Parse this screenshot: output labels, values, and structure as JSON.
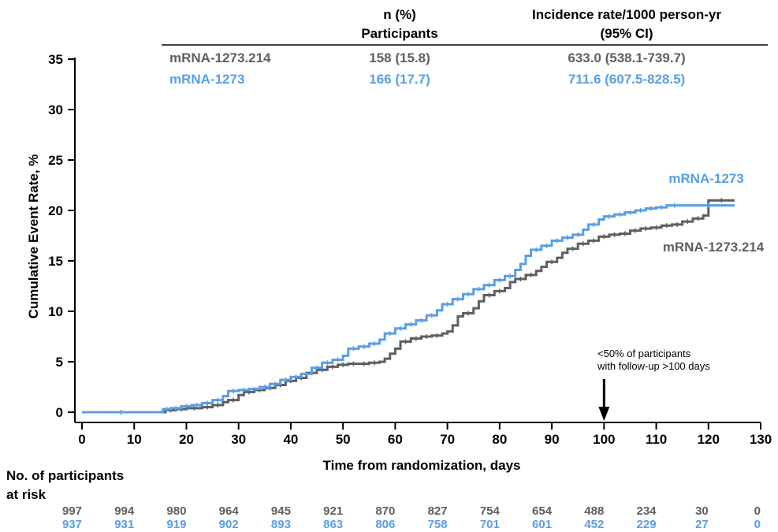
{
  "chart_data": {
    "type": "line",
    "step": true,
    "xlabel": "Time from randomization, days",
    "ylabel": "Cumulative Event Rate, %",
    "xlim": [
      0,
      130
    ],
    "ylim": [
      0,
      35
    ],
    "xticks": [
      0,
      10,
      20,
      30,
      40,
      50,
      60,
      70,
      80,
      90,
      100,
      110,
      120,
      130
    ],
    "yticks": [
      0,
      5,
      10,
      15,
      20,
      25,
      30,
      35
    ],
    "grid": false,
    "summary_table": {
      "headers": {
        "n_line1": "n (%)",
        "n_line2": "Participants",
        "ir_line1": "Incidence rate/1000 person-yr",
        "ir_line2": "(95% CI)"
      },
      "rows": [
        {
          "label": "mRNA-1273.214",
          "n": "158 (15.8)",
          "ir": "633.0 (538.1-739.7)",
          "color": "#5f5f5f"
        },
        {
          "label": "mRNA-1273",
          "n": "166 (17.7)",
          "ir": "711.6 (607.5-828.5)",
          "color": "#5a9ee6"
        }
      ]
    },
    "series": [
      {
        "name": "mRNA-1273.214",
        "color": "#5f5f5f",
        "points": [
          [
            0,
            0
          ],
          [
            15,
            0
          ],
          [
            16,
            0.2
          ],
          [
            18,
            0.3
          ],
          [
            20,
            0.4
          ],
          [
            23,
            0.5
          ],
          [
            25,
            0.7
          ],
          [
            27,
            1.0
          ],
          [
            28,
            1.2
          ],
          [
            30,
            1.7
          ],
          [
            31,
            2.0
          ],
          [
            33,
            2.2
          ],
          [
            35,
            2.4
          ],
          [
            37,
            2.7
          ],
          [
            39,
            3.1
          ],
          [
            41,
            3.4
          ],
          [
            43,
            3.9
          ],
          [
            45,
            4.2
          ],
          [
            47,
            4.5
          ],
          [
            49,
            4.7
          ],
          [
            51,
            4.8
          ],
          [
            53,
            4.8
          ],
          [
            55,
            4.9
          ],
          [
            57,
            5.0
          ],
          [
            58,
            5.3
          ],
          [
            59,
            5.8
          ],
          [
            60,
            6.3
          ],
          [
            61,
            7.0
          ],
          [
            63,
            7.3
          ],
          [
            65,
            7.5
          ],
          [
            67,
            7.6
          ],
          [
            69,
            7.8
          ],
          [
            70,
            8.0
          ],
          [
            71,
            8.6
          ],
          [
            72,
            9.5
          ],
          [
            73,
            9.8
          ],
          [
            75,
            10.3
          ],
          [
            76,
            11.0
          ],
          [
            77,
            11.6
          ],
          [
            79,
            12.0
          ],
          [
            81,
            12.3
          ],
          [
            82,
            12.9
          ],
          [
            83,
            13.2
          ],
          [
            85,
            13.6
          ],
          [
            87,
            14.0
          ],
          [
            88,
            14.4
          ],
          [
            89,
            14.9
          ],
          [
            91,
            15.3
          ],
          [
            92,
            15.8
          ],
          [
            93,
            16.2
          ],
          [
            95,
            16.7
          ],
          [
            97,
            17.0
          ],
          [
            99,
            17.4
          ],
          [
            101,
            17.6
          ],
          [
            103,
            17.7
          ],
          [
            105,
            18.0
          ],
          [
            107,
            18.2
          ],
          [
            109,
            18.3
          ],
          [
            111,
            18.5
          ],
          [
            113,
            18.6
          ],
          [
            115,
            18.9
          ],
          [
            117,
            19.2
          ],
          [
            119,
            19.5
          ],
          [
            120,
            21.0
          ],
          [
            125,
            21.0
          ]
        ]
      },
      {
        "name": "mRNA-1273",
        "color": "#5a9ee6",
        "points": [
          [
            0,
            0
          ],
          [
            15,
            0
          ],
          [
            15.5,
            0.3
          ],
          [
            17,
            0.4
          ],
          [
            19,
            0.6
          ],
          [
            21,
            0.7
          ],
          [
            23,
            0.9
          ],
          [
            25,
            1.2
          ],
          [
            27,
            1.6
          ],
          [
            28,
            2.1
          ],
          [
            30,
            2.2
          ],
          [
            32,
            2.3
          ],
          [
            34,
            2.5
          ],
          [
            36,
            2.8
          ],
          [
            38,
            3.2
          ],
          [
            40,
            3.5
          ],
          [
            42,
            3.8
          ],
          [
            44,
            4.4
          ],
          [
            46,
            4.9
          ],
          [
            48,
            5.2
          ],
          [
            50,
            5.6
          ],
          [
            51,
            6.3
          ],
          [
            53,
            6.5
          ],
          [
            55,
            6.8
          ],
          [
            57,
            7.2
          ],
          [
            58,
            7.8
          ],
          [
            60,
            8.3
          ],
          [
            62,
            8.7
          ],
          [
            64,
            9.1
          ],
          [
            66,
            9.6
          ],
          [
            68,
            10.1
          ],
          [
            69,
            10.7
          ],
          [
            71,
            11.2
          ],
          [
            73,
            11.7
          ],
          [
            75,
            12.2
          ],
          [
            77,
            12.6
          ],
          [
            79,
            13.1
          ],
          [
            81,
            13.5
          ],
          [
            83,
            14.1
          ],
          [
            84,
            14.7
          ],
          [
            85,
            15.5
          ],
          [
            86,
            16.1
          ],
          [
            88,
            16.5
          ],
          [
            90,
            17.0
          ],
          [
            92,
            17.3
          ],
          [
            94,
            17.6
          ],
          [
            96,
            18.1
          ],
          [
            97,
            18.6
          ],
          [
            99,
            19.1
          ],
          [
            100,
            19.4
          ],
          [
            102,
            19.6
          ],
          [
            104,
            19.8
          ],
          [
            106,
            20.0
          ],
          [
            108,
            20.2
          ],
          [
            110,
            20.3
          ],
          [
            112,
            20.5
          ],
          [
            115,
            20.5
          ],
          [
            125,
            20.5
          ]
        ]
      }
    ],
    "annotation": {
      "line1": "<50% of participants",
      "line2": "with follow-up >100 days",
      "x": 100
    },
    "at_risk": {
      "label_line1": "No. of participants",
      "label_line2": "at risk",
      "times": [
        0,
        10,
        20,
        30,
        40,
        50,
        60,
        70,
        80,
        90,
        100,
        110,
        120,
        130
      ],
      "rows": [
        {
          "name": "mRNA-1273.214",
          "values": [
            "997",
            "994",
            "980",
            "964",
            "945",
            "921",
            "870",
            "827",
            "754",
            "654",
            "488",
            "234",
            "30",
            "0"
          ]
        },
        {
          "name": "mRNA-1273",
          "values": [
            "937",
            "931",
            "919",
            "902",
            "893",
            "863",
            "806",
            "758",
            "701",
            "601",
            "452",
            "229",
            "27",
            "0"
          ]
        }
      ]
    }
  }
}
